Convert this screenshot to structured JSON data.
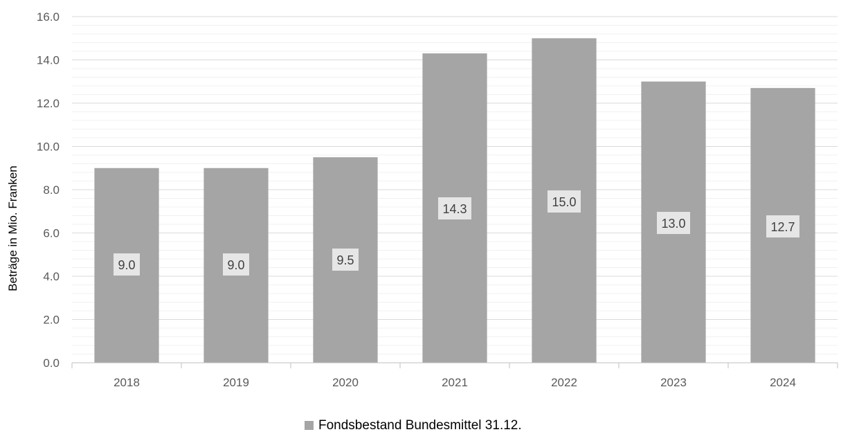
{
  "chart_data": {
    "type": "bar",
    "categories": [
      "2018",
      "2019",
      "2020",
      "2021",
      "2022",
      "2023",
      "2024"
    ],
    "series": [
      {
        "name": "Fondsbestand Bundesmittel 31.12.",
        "values": [
          9.0,
          9.0,
          9.5,
          14.3,
          15.0,
          13.0,
          12.7
        ],
        "labels": [
          "9.0",
          "9.0",
          "9.5",
          "14.3",
          "15.0",
          "13.0",
          "12.7"
        ],
        "color": "#a5a5a5"
      }
    ],
    "ylabel": "Beträge in Mio. Franken",
    "ylim": [
      0,
      16
    ],
    "yticks": [
      "0.0",
      "2.0",
      "4.0",
      "6.0",
      "8.0",
      "10.0",
      "12.0",
      "14.0",
      "16.0"
    ],
    "minor_grid_step": 0.4,
    "grid": true,
    "legend_position": "bottom",
    "colors": {
      "bar": "#a5a5a5",
      "major_grid": "#d9d9d9",
      "minor_grid": "#f0f0f0",
      "axis": "#bfbfbf",
      "label_box": "#e6e6e6"
    }
  }
}
